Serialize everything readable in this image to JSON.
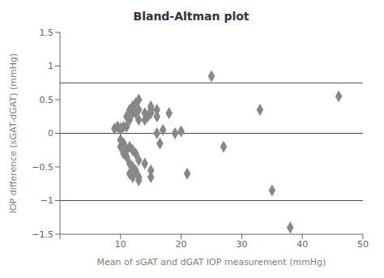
{
  "chart_data": {
    "type": "scatter",
    "title": "Bland-Altman plot",
    "xlabel": "Mean of sGAT and dGAT IOP measurement (mmHg)",
    "ylabel": "IOP difference (sGAT-dGAT) (mmHg)",
    "xlim": [
      0,
      50
    ],
    "ylim": [
      -1.5,
      1.5
    ],
    "xticks": [
      {
        "value": 0,
        "label": ""
      },
      10,
      20,
      30,
      40,
      50
    ],
    "yticks": [
      {
        "value": -1.5,
        "label": "−1.5"
      },
      {
        "value": -1.0,
        "label": "−1"
      },
      {
        "value": -0.5,
        "label": "−0.5"
      },
      0,
      0.5,
      1,
      1.5
    ],
    "color": "#878787",
    "marker": "diamond",
    "hlines": {
      "values": [
        0.0,
        0.75,
        -1.0
      ],
      "color": "#4a4a4a"
    },
    "points": [
      [
        9.0,
        0.07
      ],
      [
        9.5,
        0.1
      ],
      [
        10.0,
        0.05
      ],
      [
        10.0,
        0.08
      ],
      [
        10.0,
        -0.1
      ],
      [
        10.0,
        -0.2
      ],
      [
        10.5,
        0.1
      ],
      [
        10.5,
        -0.15
      ],
      [
        10.5,
        -0.3
      ],
      [
        11.0,
        0.25
      ],
      [
        11.0,
        0.1
      ],
      [
        11.0,
        -0.25
      ],
      [
        11.0,
        -0.35
      ],
      [
        11.5,
        0.35
      ],
      [
        11.5,
        0.2
      ],
      [
        11.5,
        -0.2
      ],
      [
        11.5,
        -0.45
      ],
      [
        11.5,
        -0.6
      ],
      [
        12.0,
        0.4
      ],
      [
        12.0,
        0.3
      ],
      [
        12.0,
        -0.25
      ],
      [
        12.0,
        -0.5
      ],
      [
        12.0,
        -0.65
      ],
      [
        12.5,
        0.45
      ],
      [
        12.5,
        0.3
      ],
      [
        12.5,
        -0.3
      ],
      [
        12.5,
        -0.55
      ],
      [
        13.0,
        0.5
      ],
      [
        13.0,
        0.35
      ],
      [
        13.0,
        0.2
      ],
      [
        13.0,
        -0.4
      ],
      [
        13.0,
        -0.65
      ],
      [
        13.0,
        -0.7
      ],
      [
        14.0,
        0.3
      ],
      [
        14.0,
        0.2
      ],
      [
        14.0,
        -0.45
      ],
      [
        14.5,
        0.25
      ],
      [
        15.0,
        0.4
      ],
      [
        15.0,
        0.35
      ],
      [
        15.0,
        0.3
      ],
      [
        15.0,
        -0.55
      ],
      [
        15.0,
        -0.65
      ],
      [
        16.0,
        0.35
      ],
      [
        16.0,
        0.25
      ],
      [
        16.0,
        0.0
      ],
      [
        16.5,
        -0.15
      ],
      [
        17.0,
        0.05
      ],
      [
        18.0,
        0.3
      ],
      [
        19.0,
        0.0
      ],
      [
        20.0,
        0.03
      ],
      [
        21.0,
        -0.6
      ],
      [
        25.0,
        0.85
      ],
      [
        27.0,
        -0.2
      ],
      [
        33.0,
        0.35
      ],
      [
        35.0,
        -0.85
      ],
      [
        46.0,
        0.55
      ],
      [
        38.0,
        -1.4
      ]
    ]
  }
}
